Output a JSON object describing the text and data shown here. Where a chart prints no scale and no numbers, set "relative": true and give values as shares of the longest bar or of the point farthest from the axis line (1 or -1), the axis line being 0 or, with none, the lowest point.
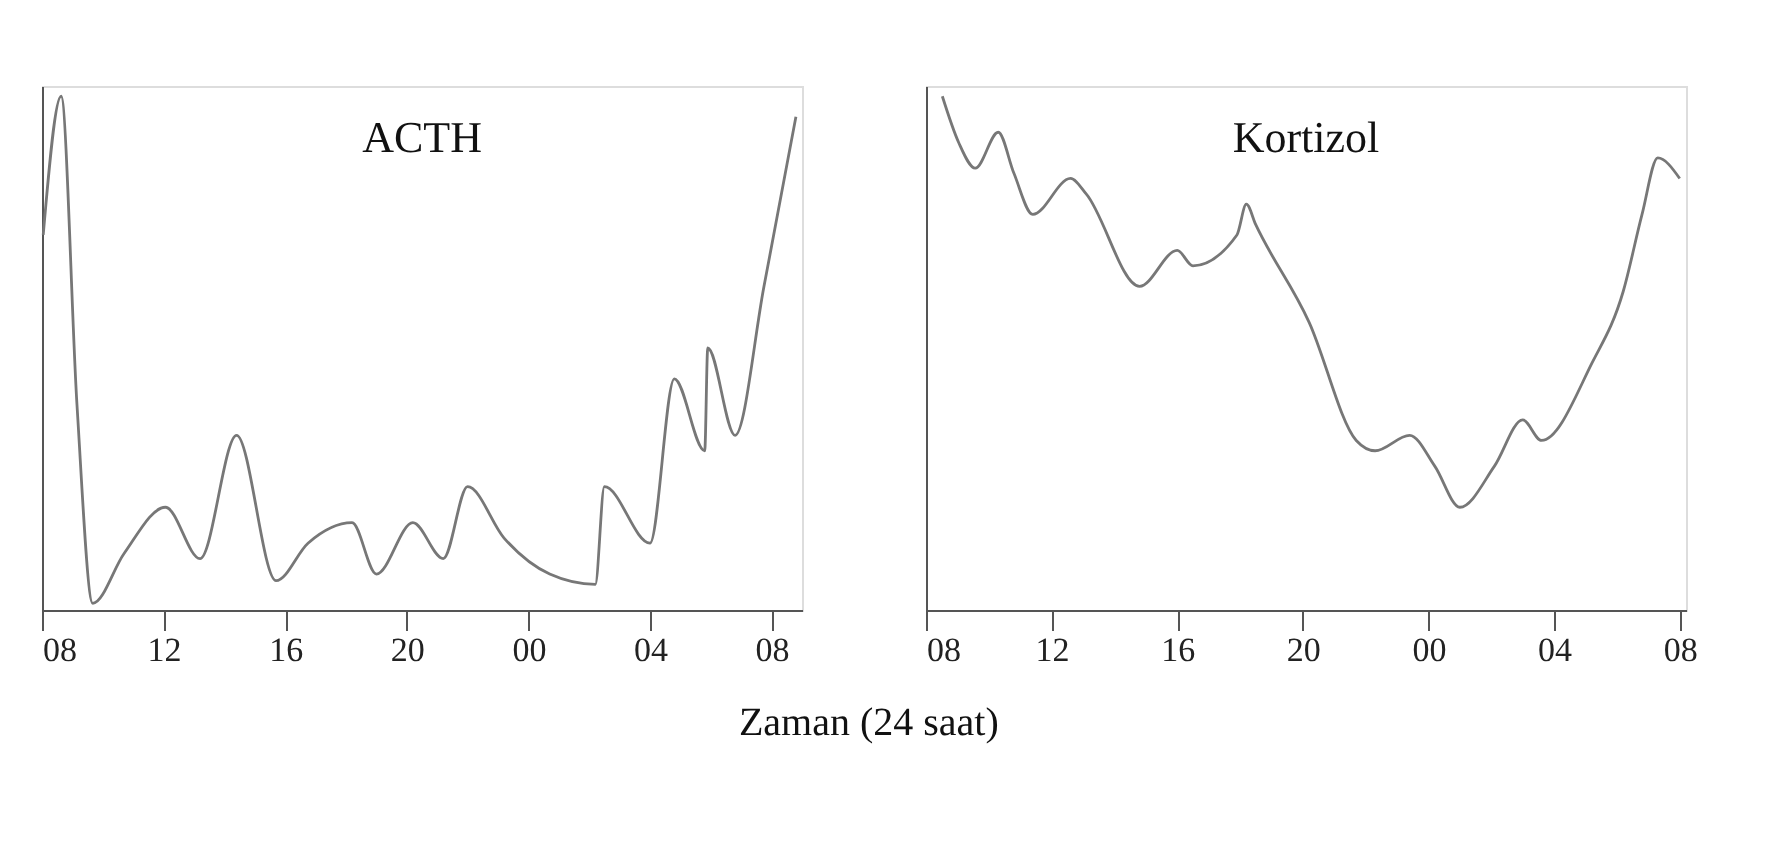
{
  "chart_data": [
    {
      "type": "line",
      "title": "ACTH",
      "xlabel": "Zaman (24 saat)",
      "relative": true,
      "line_style": "solid",
      "marker": "none",
      "grid": false,
      "x": [
        8.04,
        8.63,
        9.15,
        9.67,
        10.7,
        12.06,
        13.2,
        14.4,
        15.7,
        16.75,
        18.2,
        19.0,
        20.2,
        21.2,
        22.0,
        23.2,
        24.7,
        26.2,
        26.5,
        28.0,
        28.8,
        29.8,
        29.9,
        30.8,
        31.75,
        32.8
      ],
      "series": [
        {
          "color": "#777777",
          "values": [
            0.73,
            1.0,
            0.4,
            0.013,
            0.11,
            0.2,
            0.1,
            0.34,
            0.057,
            0.13,
            0.17,
            0.07,
            0.17,
            0.1,
            0.24,
            0.14,
            0.07,
            0.05,
            0.24,
            0.13,
            0.45,
            0.31,
            0.51,
            0.34,
            0.63,
            0.96
          ]
        }
      ],
      "xlim": [
        8,
        33
      ],
      "xticks": [
        {
          "value": 8,
          "label": "08"
        },
        {
          "value": 12,
          "label": "12"
        },
        {
          "value": 16,
          "label": "16"
        },
        {
          "value": 20,
          "label": "20"
        },
        {
          "value": 24,
          "label": "00"
        },
        {
          "value": 28,
          "label": "04"
        },
        {
          "value": 32,
          "label": "08"
        }
      ]
    },
    {
      "type": "line",
      "title": "Kortizol",
      "relative": true,
      "line_style": "solid",
      "marker": "none",
      "grid": false,
      "x": [
        8.52,
        9.04,
        9.57,
        10.3,
        10.8,
        11.4,
        12.6,
        13.1,
        14.8,
        16.0,
        16.5,
        17.9,
        18.2,
        18.5,
        20.2,
        21.7,
        22.3,
        23.4,
        24.2,
        25.0,
        26.1,
        27.0,
        27.6,
        29.2,
        30.2,
        30.8,
        31.3,
        32.0
      ],
      "series": [
        {
          "color": "#777777",
          "values": [
            1.0,
            0.91,
            0.86,
            0.93,
            0.85,
            0.77,
            0.84,
            0.81,
            0.63,
            0.7,
            0.67,
            0.73,
            0.79,
            0.75,
            0.56,
            0.33,
            0.31,
            0.34,
            0.28,
            0.2,
            0.28,
            0.37,
            0.33,
            0.48,
            0.62,
            0.77,
            0.88,
            0.84
          ]
        }
      ],
      "xlim": [
        8,
        32.2
      ],
      "xticks": [
        {
          "value": 8,
          "label": "08"
        },
        {
          "value": 12,
          "label": "12"
        },
        {
          "value": 16,
          "label": "16"
        },
        {
          "value": 20,
          "label": "20"
        },
        {
          "value": 24,
          "label": "00"
        },
        {
          "value": 28,
          "label": "04"
        },
        {
          "value": 32,
          "label": "08"
        }
      ]
    }
  ]
}
